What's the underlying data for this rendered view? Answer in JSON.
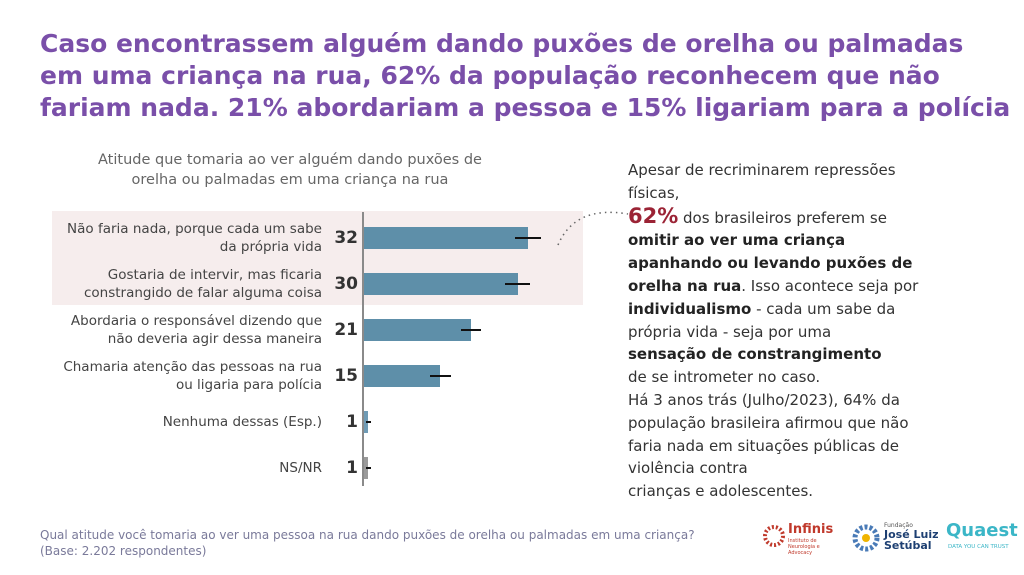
{
  "header": {
    "title_lines": [
      "Caso encontrassem alguém dando puxões de orelha ou palmadas",
      "em uma criança na rua, 62% da população reconhecem que não",
      "fariam nada. 21% abordariam a pessoa e 15% ligariam para a polícia"
    ]
  },
  "chart_data": {
    "type": "bar",
    "orientation": "horizontal",
    "title_lines": [
      "Atitude que tomaria ao ver alguém dando puxões de",
      "orelha ou palmadas em uma criança na rua"
    ],
    "categories": [
      "Não faria nada, porque cada um sabe da própria vida",
      "Gostaria de intervir, mas ficaria constrangido de falar alguma coisa",
      "Abordaria o responsável dizendo que não deveria agir dessa maneira",
      "Chamaria atenção das pessoas na rua ou ligaria para polícia",
      "Nenhuma dessas (Esp.)",
      "NS/NR"
    ],
    "values": [
      32,
      30,
      21,
      15,
      1,
      1
    ],
    "errors": [
      2.5,
      2.5,
      2,
      2,
      0.5,
      0.5
    ],
    "colors": [
      "#5e8fa9",
      "#5e8fa9",
      "#5e8fa9",
      "#5e8fa9",
      "#6f9bb5",
      "#9a9a9a"
    ],
    "highlight_count": 2,
    "xlim": [
      0,
      40
    ]
  },
  "note": {
    "lines": [
      [
        {
          "text": "Apesar de recriminarem repressões"
        }
      ],
      [
        {
          "text": "físicas,"
        }
      ],
      [
        {
          "text": "62%",
          "highlight": true
        },
        {
          "text": " dos brasileiros preferem se"
        }
      ],
      [
        {
          "text": "omitir ao ver uma criança",
          "bold": true
        }
      ],
      [
        {
          "text": "apanhando ou levando puxões de",
          "bold": true
        }
      ],
      [
        {
          "text": "orelha na rua",
          "bold": true
        },
        {
          "text": ". Isso acontece seja por"
        }
      ],
      [
        {
          "text": "individualismo",
          "bold": true
        },
        {
          "text": " - cada um sabe da"
        }
      ],
      [
        {
          "text": "própria vida - seja por uma"
        }
      ],
      [
        {
          "text": "sensação de constrangimento",
          "bold": true
        }
      ],
      [
        {
          "text": "de se intrometer no caso."
        }
      ],
      [
        {
          "text": "Há 3 anos trás (Julho/2023), 64% da"
        }
      ],
      [
        {
          "text": "população brasileira afirmou que não"
        }
      ],
      [
        {
          "text": "faria nada em situações públicas de"
        }
      ],
      [
        {
          "text": "violência contra"
        }
      ],
      [
        {
          "text": "crianças e adolescentes."
        }
      ]
    ]
  },
  "footer": {
    "question": "Qual atitude você tomaria ao ver uma pessoa na rua dando puxões de orelha ou palmadas em uma criança?",
    "base": "(Base: 2.202 respondentes)"
  },
  "logos": {
    "infinis": "Infinis",
    "infinis_sub": "Instituto de Neurologia e Advocacy",
    "fundacao": "Fundação",
    "jls": "José Luiz Setúbal",
    "quaest": "Quaest",
    "quaest_sub": "DATA YOU CAN TRUST"
  }
}
